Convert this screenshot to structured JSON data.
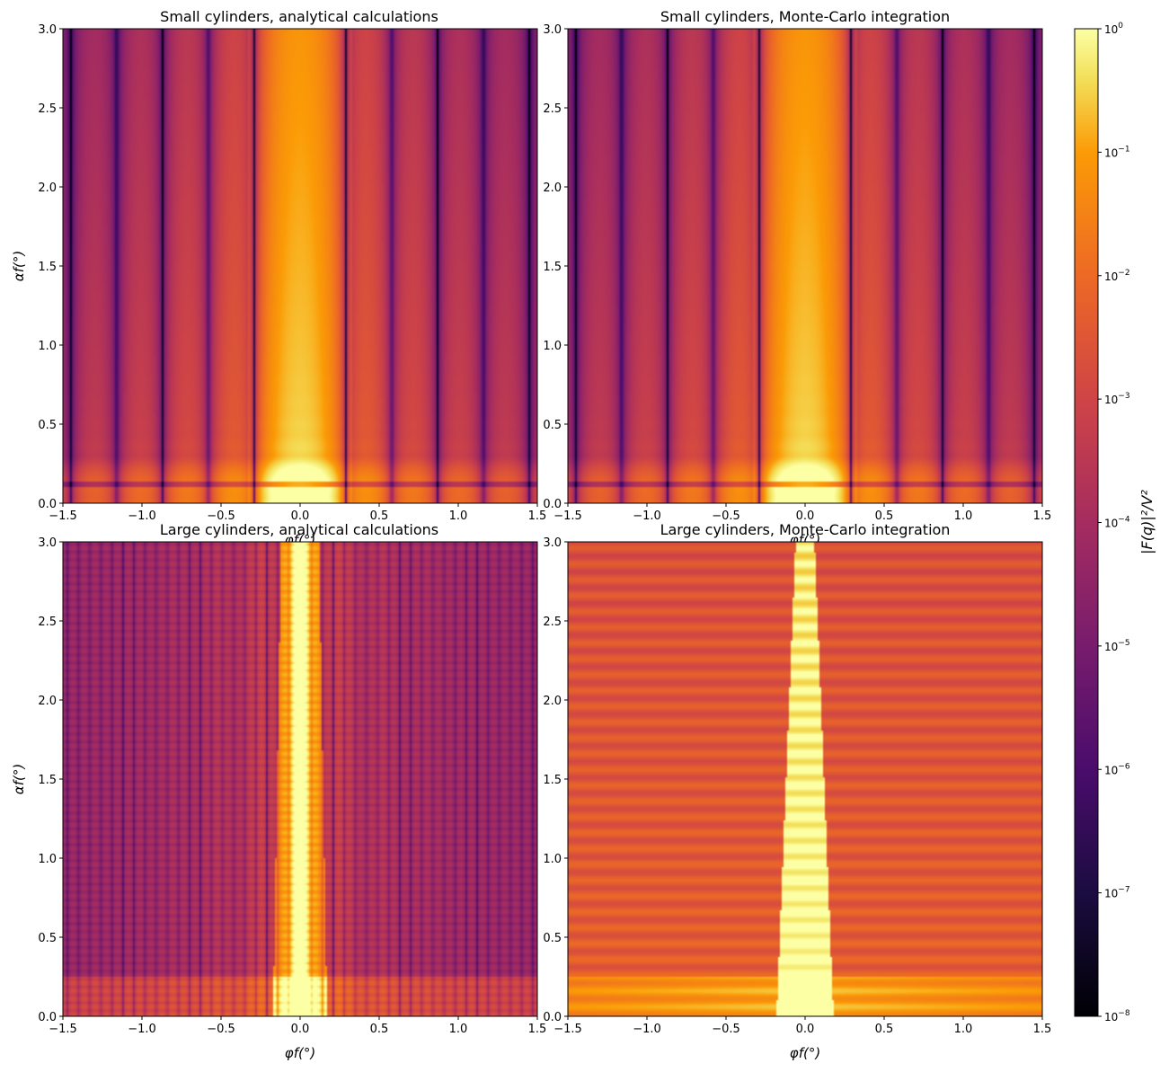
{
  "colormap": "inferno",
  "chart_data": [
    {
      "type": "heatmap",
      "title": "Small cylinders, analytical calculations",
      "xlabel": "φf(°)",
      "ylabel": "αf(°)",
      "xlim": [
        -1.5,
        1.5
      ],
      "ylim": [
        0,
        3.0
      ],
      "xticks": [
        "−1.5",
        "−1.0",
        "−0.5",
        "0.0",
        "0.5",
        "1.0",
        "1.5"
      ],
      "yticks": [
        "0.0",
        "0.5",
        "1.0",
        "1.5",
        "2.0",
        "2.5",
        "3.0"
      ],
      "pattern": {
        "kind": "small",
        "x_fringe_period": 0.29,
        "y_fringe_period": 0.125,
        "central_halfwidth": 0.33
      }
    },
    {
      "type": "heatmap",
      "title": "Small cylinders, Monte-Carlo integration",
      "xlabel": "φf(°)",
      "ylabel": "",
      "xlim": [
        -1.5,
        1.5
      ],
      "ylim": [
        0,
        3.0
      ],
      "xticks": [
        "−1.5",
        "−1.0",
        "−0.5",
        "0.0",
        "0.5",
        "1.0",
        "1.5"
      ],
      "yticks": [
        "0.0",
        "0.5",
        "1.0",
        "1.5",
        "2.0",
        "2.5",
        "3.0"
      ],
      "pattern": {
        "kind": "small",
        "x_fringe_period": 0.29,
        "y_fringe_period": 0.125,
        "central_halfwidth": 0.33
      }
    },
    {
      "type": "heatmap",
      "title": "Large cylinders, analytical calculations",
      "xlabel": "φf(°)",
      "ylabel": "αf(°)",
      "xlim": [
        -1.5,
        1.5
      ],
      "ylim": [
        0,
        3.0
      ],
      "xticks": [
        "−1.5",
        "−1.0",
        "−0.5",
        "0.0",
        "0.5",
        "1.0",
        "1.5"
      ],
      "yticks": [
        "0.0",
        "0.5",
        "1.0",
        "1.5",
        "2.0",
        "2.5",
        "3.0"
      ],
      "pattern": {
        "kind": "large_analytical",
        "x_fringe_period": 0.07,
        "y_fringe_period": 0.05
      }
    },
    {
      "type": "heatmap",
      "title": "Large cylinders, Monte-Carlo integration",
      "xlabel": "φf(°)",
      "ylabel": "",
      "xlim": [
        -1.5,
        1.5
      ],
      "ylim": [
        0,
        3.0
      ],
      "xticks": [
        "−1.5",
        "−1.0",
        "−0.5",
        "0.0",
        "0.5",
        "1.0",
        "1.5"
      ],
      "yticks": [
        "0.0",
        "0.5",
        "1.0",
        "1.5",
        "2.0",
        "2.5",
        "3.0"
      ],
      "pattern": {
        "kind": "large_montecarlo",
        "y_fringe_period": 0.05
      }
    }
  ],
  "colorbar": {
    "label": "|F(q)|²/V²",
    "scale": "log",
    "range": [
      1e-08,
      1
    ],
    "ticks": [
      {
        "mant": "10",
        "exp": "0"
      },
      {
        "mant": "10",
        "exp": "−1"
      },
      {
        "mant": "10",
        "exp": "−2"
      },
      {
        "mant": "10",
        "exp": "−3"
      },
      {
        "mant": "10",
        "exp": "−4"
      },
      {
        "mant": "10",
        "exp": "−5"
      },
      {
        "mant": "10",
        "exp": "−6"
      },
      {
        "mant": "10",
        "exp": "−7"
      },
      {
        "mant": "10",
        "exp": "−8"
      }
    ]
  }
}
